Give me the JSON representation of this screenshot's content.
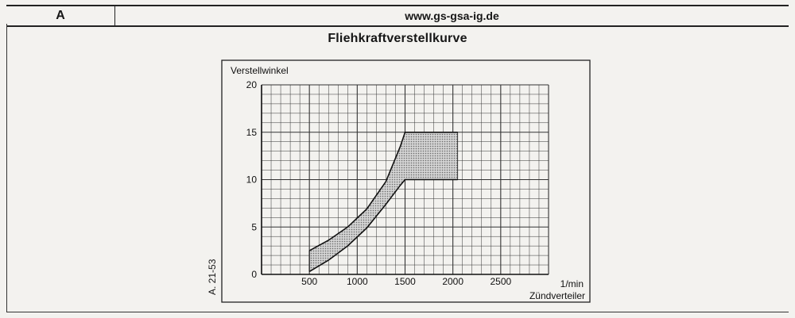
{
  "header": {
    "section": "A",
    "site": "www.gs-gsa-ig.de"
  },
  "side_code": "A. 21-53",
  "chart_data": {
    "type": "area",
    "title": "Fliehkraftverstellkurve",
    "xlabel": "Zündverteiler",
    "xunit": "1/min",
    "ylabel": "Verstellwinkel",
    "xlim": [
      0,
      3000
    ],
    "ylim": [
      0,
      20
    ],
    "x_ticks": [
      500,
      1000,
      1500,
      2000,
      2500
    ],
    "y_ticks": [
      0,
      5,
      10,
      15,
      20
    ],
    "grid": true,
    "series": [
      {
        "values_upper": [
          [
            500,
            2.5
          ],
          [
            700,
            3.6
          ],
          [
            900,
            5.0
          ],
          [
            1100,
            6.9
          ],
          [
            1300,
            9.8
          ],
          [
            1450,
            13.5
          ],
          [
            1500,
            15.0
          ],
          [
            2050,
            15.0
          ]
        ],
        "values_lower": [
          [
            500,
            0.3
          ],
          [
            700,
            1.5
          ],
          [
            900,
            3.0
          ],
          [
            1100,
            4.9
          ],
          [
            1300,
            7.4
          ],
          [
            1450,
            9.4
          ],
          [
            1500,
            10.0
          ],
          [
            2050,
            10.0
          ]
        ]
      }
    ]
  }
}
